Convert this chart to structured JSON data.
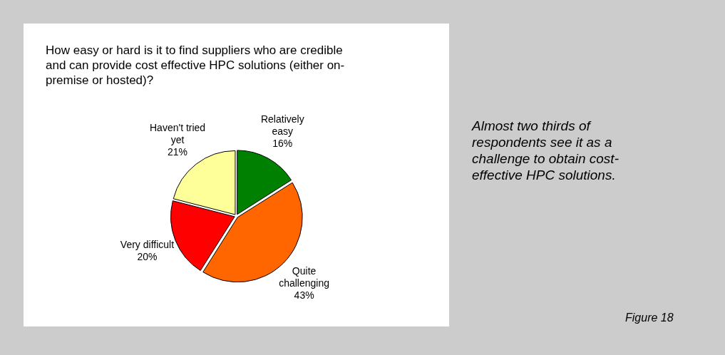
{
  "chart_data": {
    "type": "pie",
    "title": "How easy or hard is it to find suppliers who are credible and can provide cost effective HPC solutions (either on-premise or hosted)?",
    "categories": [
      "Relatively easy",
      "Quite challenging",
      "Very difficult",
      "Haven't tried yet"
    ],
    "values": [
      16,
      43,
      20,
      21
    ],
    "value_labels": [
      "16%",
      "43%",
      "20%",
      "21%"
    ],
    "colors": [
      "#008000",
      "#ff6600",
      "#ff0000",
      "#ffff99"
    ],
    "legend": false,
    "annotations": [
      "Almost two thirds of respondents see it as a challenge to obtain cost-effective HPC solutions.",
      "Figure 18"
    ]
  }
}
